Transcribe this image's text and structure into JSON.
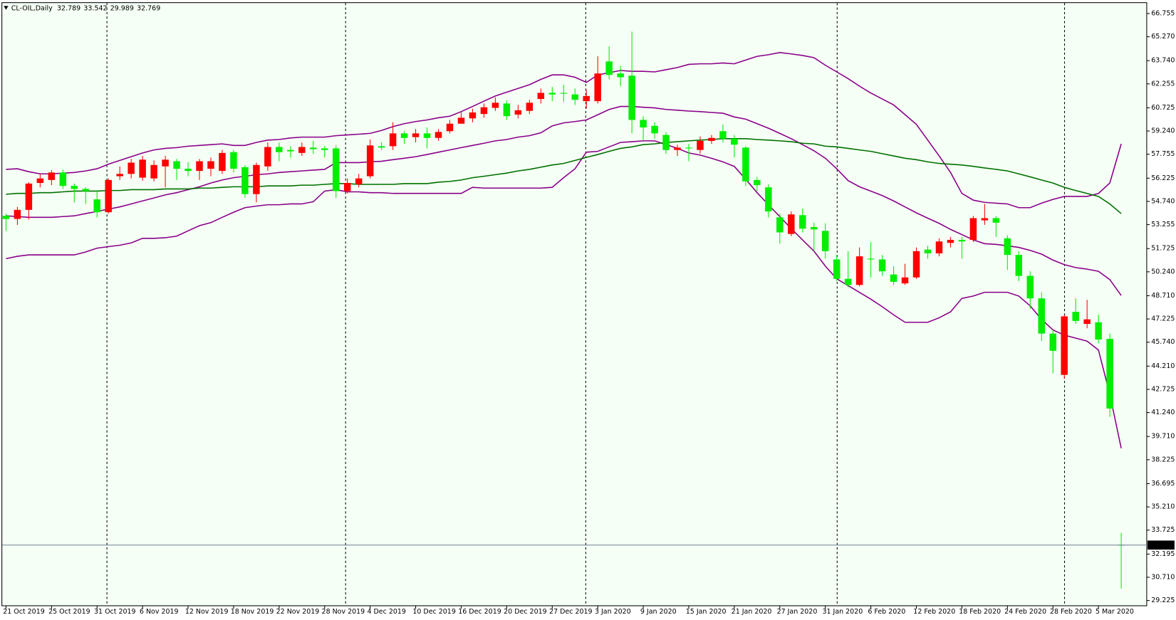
{
  "chart_data": {
    "type": "candlestick",
    "title": "CL-OIL,Daily",
    "categories": [
      "21 Oct 2019",
      null,
      null,
      null,
      "25 Oct 2019",
      null,
      null,
      null,
      "31 Oct 2019",
      null,
      null,
      null,
      "6 Nov 2019",
      null,
      null,
      null,
      "12 Nov 2019",
      null,
      null,
      null,
      "18 Nov 2019",
      null,
      null,
      null,
      "22 Nov 2019",
      null,
      null,
      null,
      "28 Nov 2019",
      null,
      null,
      null,
      "4 Dec 2019",
      null,
      null,
      null,
      "10 Dec 2019",
      null,
      null,
      null,
      "16 Dec 2019",
      null,
      null,
      null,
      "20 Dec 2019",
      null,
      null,
      null,
      "27 Dec 2019",
      null,
      null,
      null,
      "3 Jan 2020",
      null,
      null,
      null,
      "9 Jan 2020",
      null,
      null,
      null,
      "15 Jan 2020",
      null,
      null,
      null,
      "21 Jan 2020",
      null,
      null,
      null,
      "27 Jan 2020",
      null,
      null,
      null,
      "31 Jan 2020",
      null,
      null,
      null,
      "6 Feb 2020",
      null,
      null,
      null,
      "12 Feb 2020",
      null,
      null,
      null,
      "18 Feb 2020",
      null,
      null,
      null,
      "24 Feb 2020",
      null,
      null,
      null,
      "28 Feb 2020",
      null,
      null,
      null,
      "5 Mar 2020",
      null,
      null
    ],
    "open": [
      53.82,
      53.62,
      54.2,
      55.92,
      56.11,
      56.59,
      55.73,
      55.54,
      54.87,
      54.05,
      56.35,
      56.5,
      56.26,
      56.21,
      56.98,
      57.31,
      56.83,
      56.69,
      56.83,
      56.69,
      57.89,
      56.93,
      55.21,
      56.98,
      58.22,
      58.03,
      57.84,
      58.18,
      58.13,
      58.13,
      55.4,
      55.83,
      56.35,
      58.27,
      58.27,
      59.09,
      58.85,
      59.09,
      58.8,
      59.23,
      59.71,
      60.05,
      60.33,
      60.72,
      61.0,
      60.29,
      60.53,
      61.29,
      61.68,
      61.68,
      61.58,
      61.15,
      61.15,
      63.69,
      62.92,
      62.78,
      59.95,
      59.57,
      58.99,
      58.03,
      58.18,
      58.03,
      58.61,
      59.23,
      58.75,
      58.18,
      56.11,
      55.64,
      53.72,
      52.66,
      53.86,
      53.1,
      52.86,
      51.03,
      49.79,
      49.4,
      51.08,
      51.03,
      50.07,
      49.5,
      49.88,
      51.66,
      51.42,
      52.09,
      52.28,
      52.28,
      53.53,
      53.67,
      52.38,
      51.32,
      49.98,
      48.54,
      46.29,
      43.65,
      47.68,
      46.91,
      47.01,
      45.95,
      32.789
    ],
    "high": [
      53.96,
      54.39,
      55.97,
      56.5,
      56.74,
      56.78,
      55.88,
      55.64,
      55.4,
      56.21,
      56.98,
      57.46,
      57.65,
      57.36,
      57.65,
      57.46,
      57.26,
      57.46,
      57.55,
      58.03,
      58.03,
      57.07,
      57.22,
      58.51,
      58.51,
      58.27,
      58.51,
      58.61,
      58.27,
      58.32,
      56.21,
      56.5,
      58.7,
      58.51,
      59.8,
      59.23,
      59.37,
      59.47,
      59.37,
      59.95,
      60.43,
      60.67,
      61.0,
      61.39,
      61.2,
      60.91,
      61.24,
      61.96,
      62.06,
      62.2,
      61.96,
      61.87,
      64.02,
      64.65,
      63.4,
      65.6,
      60.19,
      59.8,
      59.18,
      58.37,
      58.42,
      58.9,
      58.99,
      59.66,
      58.99,
      58.27,
      56.31,
      55.83,
      53.96,
      54.1,
      54.29,
      53.38,
      53.34,
      51.32,
      51.56,
      51.8,
      52.14,
      51.32,
      50.6,
      50.75,
      51.8,
      51.9,
      52.38,
      52.47,
      52.47,
      53.81,
      54.58,
      53.81,
      52.57,
      51.56,
      50.27,
      48.93,
      46.53,
      47.49,
      48.54,
      48.45,
      47.49,
      46.29,
      33.542
    ],
    "low": [
      52.86,
      53.24,
      53.58,
      55.64,
      55.78,
      55.54,
      54.68,
      54.58,
      53.72,
      53.96,
      56.11,
      56.21,
      56.07,
      56.02,
      55.64,
      56.11,
      56.35,
      56.11,
      56.35,
      56.5,
      56.59,
      54.97,
      54.68,
      56.69,
      57.31,
      57.55,
      57.65,
      57.79,
      57.55,
      54.97,
      55.25,
      55.64,
      56.21,
      58.03,
      58.03,
      58.42,
      58.51,
      58.13,
      58.61,
      59.09,
      59.71,
      59.8,
      60.09,
      60.53,
      59.95,
      60.05,
      60.33,
      61.0,
      61.15,
      61.1,
      60.91,
      60.67,
      61.0,
      62.54,
      62.11,
      59.09,
      58.66,
      58.75,
      57.79,
      57.65,
      57.31,
      57.79,
      58.42,
      58.51,
      57.55,
      55.73,
      55.4,
      53.72,
      52.04,
      52.52,
      52.76,
      51.56,
      51.08,
      49.64,
      49.26,
      49.31,
      49.88,
      49.98,
      49.4,
      49.4,
      49.79,
      51.08,
      51.23,
      51.8,
      51.08,
      52.14,
      53.24,
      52.47,
      50.36,
      49.64,
      47.87,
      45.81,
      43.75,
      43.41,
      46.91,
      46.63,
      45.67,
      40.97,
      29.989
    ],
    "close": [
      53.62,
      54.2,
      55.88,
      56.21,
      56.59,
      55.73,
      55.54,
      55.4,
      54.05,
      56.11,
      56.5,
      57.22,
      57.41,
      57.07,
      57.41,
      56.83,
      56.69,
      57.31,
      57.31,
      57.84,
      56.83,
      55.21,
      57.07,
      58.22,
      57.89,
      57.94,
      58.22,
      58.08,
      58.03,
      55.4,
      55.92,
      56.21,
      58.32,
      58.18,
      59.09,
      58.8,
      59.09,
      58.8,
      59.18,
      59.71,
      60.09,
      60.43,
      60.76,
      61.05,
      60.19,
      60.57,
      61.05,
      61.68,
      61.58,
      61.63,
      61.24,
      61.48,
      62.92,
      62.83,
      62.68,
      59.95,
      59.47,
      59.09,
      58.03,
      58.18,
      58.13,
      58.61,
      58.8,
      58.75,
      58.37,
      56.02,
      55.78,
      54.1,
      52.76,
      53.91,
      53.0,
      52.95,
      51.56,
      49.79,
      49.4,
      51.23,
      51.03,
      50.27,
      49.6,
      49.88,
      51.56,
      51.42,
      52.18,
      52.28,
      52.18,
      53.67,
      53.67,
      53.38,
      51.32,
      49.98,
      48.54,
      46.29,
      45.19,
      47.39,
      47.1,
      47.2,
      45.91,
      41.5,
      32.769
    ],
    "up_color": "#ff0000",
    "down_color": "#00ee00",
    "lines": [
      {
        "color": "#8b008b",
        "values": [
          56.79,
          56.83,
          56.64,
          56.5,
          56.5,
          56.55,
          56.59,
          56.69,
          56.83,
          57.12,
          57.36,
          57.6,
          57.84,
          58.03,
          58.13,
          58.18,
          58.27,
          58.32,
          58.37,
          58.42,
          58.32,
          58.32,
          58.51,
          58.66,
          58.7,
          58.8,
          58.85,
          58.85,
          58.85,
          58.94,
          58.99,
          59.04,
          59.09,
          59.28,
          59.52,
          59.71,
          59.85,
          59.95,
          60.09,
          60.19,
          60.48,
          60.81,
          61.15,
          61.48,
          61.72,
          61.96,
          62.2,
          62.54,
          62.83,
          62.83,
          62.68,
          62.35,
          62.83,
          62.97,
          63.11,
          63.06,
          63.06,
          63.02,
          63.16,
          63.3,
          63.5,
          63.54,
          63.54,
          63.59,
          63.54,
          63.78,
          64.02,
          64.12,
          64.26,
          64.17,
          64.07,
          63.93,
          63.45,
          63.02,
          62.59,
          62.11,
          61.67,
          61.29,
          60.91,
          60.29,
          59.66,
          58.66,
          57.65,
          56.59,
          55.25,
          54.82,
          54.68,
          54.63,
          54.58,
          54.34,
          54.34,
          54.63,
          54.87,
          55.06,
          55.06,
          55.06,
          55.25,
          55.92,
          58.42
        ]
      },
      {
        "color": "#8b008b",
        "values": [
          53.82,
          53.77,
          53.72,
          53.72,
          53.72,
          53.77,
          53.82,
          53.96,
          54.1,
          54.25,
          54.39,
          54.58,
          54.77,
          54.96,
          55.16,
          55.3,
          55.49,
          55.68,
          55.92,
          56.11,
          56.26,
          56.35,
          56.45,
          56.5,
          56.59,
          56.64,
          56.69,
          56.74,
          56.79,
          57.22,
          57.22,
          57.22,
          57.27,
          57.31,
          57.41,
          57.5,
          57.6,
          57.74,
          57.89,
          58.03,
          58.18,
          58.32,
          58.46,
          58.61,
          58.7,
          58.85,
          58.94,
          59.13,
          59.57,
          59.76,
          59.85,
          59.95,
          60.28,
          60.62,
          60.81,
          60.81,
          60.76,
          60.72,
          60.62,
          60.57,
          60.52,
          60.48,
          60.43,
          60.38,
          60.14,
          60.0,
          59.71,
          59.42,
          59.09,
          58.75,
          58.37,
          57.98,
          57.5,
          56.83,
          56.07,
          55.68,
          55.4,
          55.11,
          54.77,
          54.39,
          54.01,
          53.67,
          53.34,
          52.95,
          52.62,
          52.28,
          52.04,
          51.99,
          51.9,
          51.8,
          51.61,
          51.37,
          50.99,
          50.7,
          50.51,
          50.41,
          50.27,
          49.74,
          48.73
        ]
      },
      {
        "color": "#8b008b",
        "values": [
          51.08,
          51.23,
          51.32,
          51.32,
          51.32,
          51.32,
          51.32,
          51.51,
          51.75,
          51.85,
          51.94,
          52.09,
          52.38,
          52.38,
          52.42,
          52.52,
          52.86,
          53.19,
          53.38,
          53.72,
          54.05,
          54.34,
          54.44,
          54.53,
          54.53,
          54.58,
          54.58,
          54.72,
          55.4,
          55.49,
          55.35,
          55.35,
          55.3,
          55.3,
          55.25,
          55.25,
          55.25,
          55.25,
          55.25,
          55.25,
          55.25,
          55.64,
          55.59,
          55.59,
          55.59,
          55.59,
          55.59,
          55.59,
          55.64,
          56.26,
          56.83,
          57.89,
          57.94,
          58.23,
          58.51,
          58.56,
          58.61,
          58.61,
          58.37,
          58.13,
          57.84,
          57.7,
          57.5,
          57.27,
          56.98,
          56.16,
          55.3,
          54.53,
          53.77,
          53.0,
          52.28,
          51.56,
          50.6,
          49.79,
          49.36,
          48.93,
          48.49,
          48.01,
          47.49,
          47.01,
          47.01,
          47.01,
          47.3,
          47.68,
          48.54,
          48.69,
          48.93,
          48.93,
          48.93,
          48.69,
          48.06,
          47.2,
          46.53,
          46.19,
          46.0,
          45.81,
          45.24,
          42.41,
          38.96
        ]
      },
      {
        "color": "#007000",
        "values": [
          55.2,
          55.25,
          55.25,
          55.3,
          55.3,
          55.35,
          55.4,
          55.4,
          55.4,
          55.44,
          55.44,
          55.49,
          55.49,
          55.49,
          55.54,
          55.54,
          55.54,
          55.59,
          55.59,
          55.64,
          55.68,
          55.68,
          55.68,
          55.73,
          55.73,
          55.73,
          55.78,
          55.78,
          55.83,
          55.88,
          55.88,
          55.83,
          55.83,
          55.83,
          55.83,
          55.88,
          55.88,
          55.88,
          55.97,
          56.02,
          56.11,
          56.26,
          56.35,
          56.45,
          56.55,
          56.69,
          56.79,
          56.93,
          57.07,
          57.17,
          57.36,
          57.55,
          57.74,
          57.94,
          58.13,
          58.23,
          58.37,
          58.42,
          58.51,
          58.56,
          58.61,
          58.66,
          58.7,
          58.75,
          58.75,
          58.75,
          58.7,
          58.66,
          58.61,
          58.56,
          58.46,
          58.42,
          58.27,
          58.23,
          58.13,
          58.03,
          57.94,
          57.79,
          57.65,
          57.5,
          57.41,
          57.27,
          57.17,
          57.12,
          57.07,
          56.98,
          56.88,
          56.79,
          56.69,
          56.5,
          56.31,
          56.11,
          55.92,
          55.64,
          55.44,
          55.25,
          55.06,
          54.58,
          53.96
        ]
      }
    ],
    "ylim": [
      28.889,
      67.426
    ],
    "yticks": [
      66.755,
      {
        "value": 65.27,
        "label": "65.270"
      },
      {
        "value": 63.74,
        "label": "63.740"
      },
      62.255,
      60.725,
      {
        "value": 59.24,
        "label": "59.240"
      },
      57.755,
      56.225,
      {
        "value": 54.74,
        "label": "54.740"
      },
      53.255,
      51.725,
      {
        "value": 50.24,
        "label": "50.240"
      },
      {
        "value": 48.71,
        "label": "48.710"
      },
      47.225,
      {
        "value": 45.74,
        "label": "45.740"
      },
      {
        "value": 44.21,
        "label": "44.210"
      },
      42.725,
      {
        "value": 41.24,
        "label": "41.240"
      },
      {
        "value": 39.71,
        "label": "39.710"
      },
      38.225,
      36.695,
      {
        "value": 35.21,
        "label": "35.210"
      },
      33.725,
      32.195,
      {
        "value": 30.71,
        "label": "30.710"
      },
      29.225
    ],
    "grid": false
  }
}
